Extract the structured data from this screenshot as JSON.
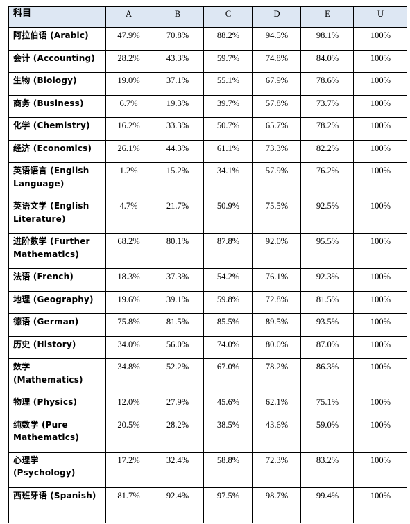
{
  "table": {
    "subject_header": "科目",
    "grade_headers": [
      "A",
      "B",
      "C",
      "D",
      "E",
      "U"
    ],
    "rows": [
      {
        "subject": "阿拉伯语 (Arabic)",
        "values": [
          "47.9%",
          "70.8%",
          "88.2%",
          "94.5%",
          "98.1%",
          "100%"
        ],
        "tall": false
      },
      {
        "subject": "会计 (Accounting)",
        "values": [
          "28.2%",
          "43.3%",
          "59.7%",
          "74.8%",
          "84.0%",
          "100%"
        ],
        "tall": false
      },
      {
        "subject": "生物 (Biology)",
        "values": [
          "19.0%",
          "37.1%",
          "55.1%",
          "67.9%",
          "78.6%",
          "100%"
        ],
        "tall": false
      },
      {
        "subject": "商务 (Business)",
        "values": [
          "6.7%",
          "19.3%",
          "39.7%",
          "57.8%",
          "73.7%",
          "100%"
        ],
        "tall": false
      },
      {
        "subject": "化学 (Chemistry)",
        "values": [
          "16.2%",
          "33.3%",
          "50.7%",
          "65.7%",
          "78.2%",
          "100%"
        ],
        "tall": false
      },
      {
        "subject": "经济 (Economics)",
        "values": [
          "26.1%",
          "44.3%",
          "61.1%",
          "73.3%",
          "82.2%",
          "100%"
        ],
        "tall": false
      },
      {
        "subject": "英语语言 (English Language)",
        "values": [
          "1.2%",
          "15.2%",
          "34.1%",
          "57.9%",
          "76.2%",
          "100%"
        ],
        "tall": true
      },
      {
        "subject": "英语文学 (English Literature)",
        "values": [
          "4.7%",
          "21.7%",
          "50.9%",
          "75.5%",
          "92.5%",
          "100%"
        ],
        "tall": true
      },
      {
        "subject": "进阶数学 (Further Mathematics)",
        "values": [
          "68.2%",
          "80.1%",
          "87.8%",
          "92.0%",
          "95.5%",
          "100%"
        ],
        "tall": true
      },
      {
        "subject": "法语 (French)",
        "values": [
          "18.3%",
          "37.3%",
          "54.2%",
          "76.1%",
          "92.3%",
          "100%"
        ],
        "tall": false
      },
      {
        "subject": "地理 (Geography)",
        "values": [
          "19.6%",
          "39.1%",
          "59.8%",
          "72.8%",
          "81.5%",
          "100%"
        ],
        "tall": false
      },
      {
        "subject": "德语 (German)",
        "values": [
          "75.8%",
          "81.5%",
          "85.5%",
          "89.5%",
          "93.5%",
          "100%"
        ],
        "tall": false
      },
      {
        "subject": "历史 (History)",
        "values": [
          "34.0%",
          "56.0%",
          "74.0%",
          "80.0%",
          "87.0%",
          "100%"
        ],
        "tall": false
      },
      {
        "subject": "数学 (Mathematics)",
        "values": [
          "34.8%",
          "52.2%",
          "67.0%",
          "78.2%",
          "86.3%",
          "100%"
        ],
        "tall": true
      },
      {
        "subject": "物理 (Physics)",
        "values": [
          "12.0%",
          "27.9%",
          "45.6%",
          "62.1%",
          "75.1%",
          "100%"
        ],
        "tall": false
      },
      {
        "subject": "纯数学 (Pure Mathematics)",
        "values": [
          "20.5%",
          "28.2%",
          "38.5%",
          "43.6%",
          "59.0%",
          "100%"
        ],
        "tall": true
      },
      {
        "subject": "心理学 (Psychology)",
        "values": [
          "17.2%",
          "32.4%",
          "58.8%",
          "72.3%",
          "83.2%",
          "100%"
        ],
        "tall": true
      },
      {
        "subject": "西班牙语 (Spanish)",
        "values": [
          "81.7%",
          "92.4%",
          "97.5%",
          "98.7%",
          "99.4%",
          "100%"
        ],
        "tall": true
      }
    ]
  }
}
